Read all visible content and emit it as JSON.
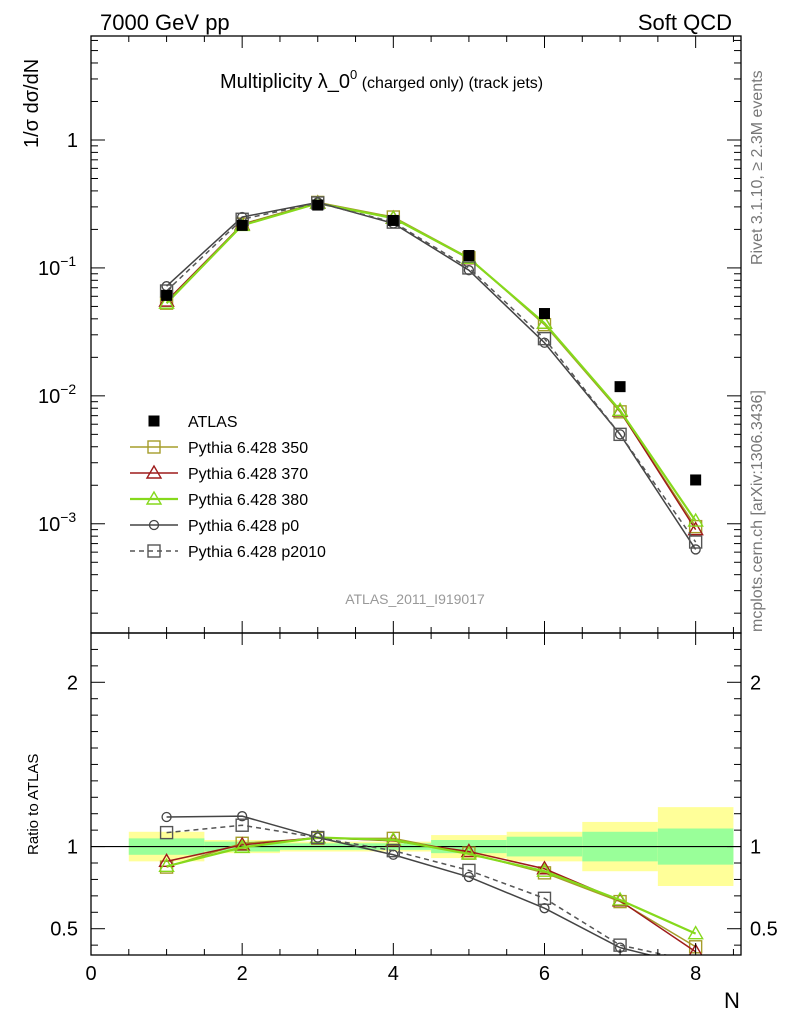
{
  "header": {
    "left": "7000 GeV pp",
    "right": "Soft QCD"
  },
  "title": {
    "main": "Multiplicity λ_0",
    "sup": "0",
    "sub": " (charged only) (track jets)"
  },
  "side_labels": {
    "rivet": "Rivet 3.1.10, ≥ 2.3M events",
    "mcplots": "mcplots.cern.ch [arXiv:1306.3436]"
  },
  "analysis_id": "ATLAS_2011_I919017",
  "chart_data": [
    {
      "type": "line",
      "panel": "main",
      "scale": "log",
      "ylabel": "1/σ dσ/dN",
      "xlim": [
        0,
        8.6
      ],
      "ylim": [
        0.00014,
        6.5
      ],
      "y_ticks": [
        {
          "value": 1,
          "label": "1"
        },
        {
          "value": 0.1,
          "label": "10",
          "sup": "−1"
        },
        {
          "value": 0.01,
          "label": "10",
          "sup": "−2"
        },
        {
          "value": 0.001,
          "label": "10",
          "sup": "−3"
        }
      ],
      "x": [
        1,
        2,
        3,
        4,
        5,
        6,
        7,
        8
      ],
      "data": {
        "name": "ATLAS",
        "values": [
          0.061,
          0.215,
          0.31,
          0.235,
          0.125,
          0.044,
          0.0118,
          0.0022
        ]
      },
      "series": [
        {
          "name": "Pythia 6.428 350",
          "color": "#a59d2a",
          "marker": "square-open",
          "dash": "solid",
          "values": [
            0.053,
            0.22,
            0.325,
            0.25,
            0.12,
            0.036,
            0.0075,
            0.00095
          ]
        },
        {
          "name": "Pythia 6.428 370",
          "color": "#9e1b1b",
          "marker": "triangle-open",
          "dash": "solid",
          "values": [
            0.055,
            0.218,
            0.322,
            0.245,
            0.118,
            0.037,
            0.0076,
            0.0009
          ]
        },
        {
          "name": "Pythia 6.428 380",
          "color": "#86d91c",
          "marker": "triangle-open",
          "dash": "solid",
          "values": [
            0.053,
            0.215,
            0.32,
            0.245,
            0.119,
            0.037,
            0.0077,
            0.00105
          ]
        },
        {
          "name": "Pythia 6.428 p0",
          "color": "#444444",
          "marker": "circle-open",
          "dash": "solid",
          "values": [
            0.072,
            0.25,
            0.325,
            0.223,
            0.096,
            0.026,
            0.005,
            0.00063
          ]
        },
        {
          "name": "Pythia 6.428 p2010",
          "color": "#555555",
          "marker": "square-open",
          "dash": "dashed",
          "values": [
            0.066,
            0.24,
            0.322,
            0.228,
            0.1,
            0.028,
            0.005,
            0.00072
          ]
        }
      ]
    },
    {
      "type": "line",
      "panel": "ratio",
      "ylabel": "Ratio to ATLAS",
      "xlabel": "N",
      "xlim": [
        0,
        8.6
      ],
      "ylim": [
        0.34,
        2.3
      ],
      "x_ticks": [
        0,
        2,
        4,
        6,
        8
      ],
      "y_ticks": [
        0.5,
        1,
        2
      ],
      "x": [
        1,
        2,
        3,
        4,
        5,
        6,
        7,
        8
      ],
      "bands": {
        "edges": [
          0.5,
          1.5,
          2.5,
          3.5,
          4.5,
          5.5,
          6.5,
          7.5,
          8.5
        ],
        "inner": [
          0.05,
          0.03,
          0.02,
          0.02,
          0.04,
          0.06,
          0.09,
          0.11
        ],
        "outer": [
          0.09,
          0.04,
          0.03,
          0.03,
          0.07,
          0.09,
          0.15,
          0.24
        ]
      },
      "series": [
        {
          "name": "Pythia 6.428 350",
          "values": [
            0.875,
            1.02,
            1.05,
            1.05,
            0.96,
            0.84,
            0.665,
            0.39
          ]
        },
        {
          "name": "Pythia 6.428 370",
          "values": [
            0.91,
            1.01,
            1.055,
            1.035,
            0.97,
            0.865,
            0.67,
            0.36
          ]
        },
        {
          "name": "Pythia 6.428 380",
          "values": [
            0.88,
            0.995,
            1.055,
            1.04,
            0.955,
            0.85,
            0.675,
            0.47
          ]
        },
        {
          "name": "Pythia 6.428 p0",
          "values": [
            1.18,
            1.185,
            1.055,
            0.95,
            0.815,
            0.625,
            0.385,
            0.27
          ]
        },
        {
          "name": "Pythia 6.428 p2010",
          "values": [
            1.085,
            1.13,
            1.055,
            0.975,
            0.855,
            0.685,
            0.4,
            0.3
          ]
        }
      ]
    }
  ]
}
